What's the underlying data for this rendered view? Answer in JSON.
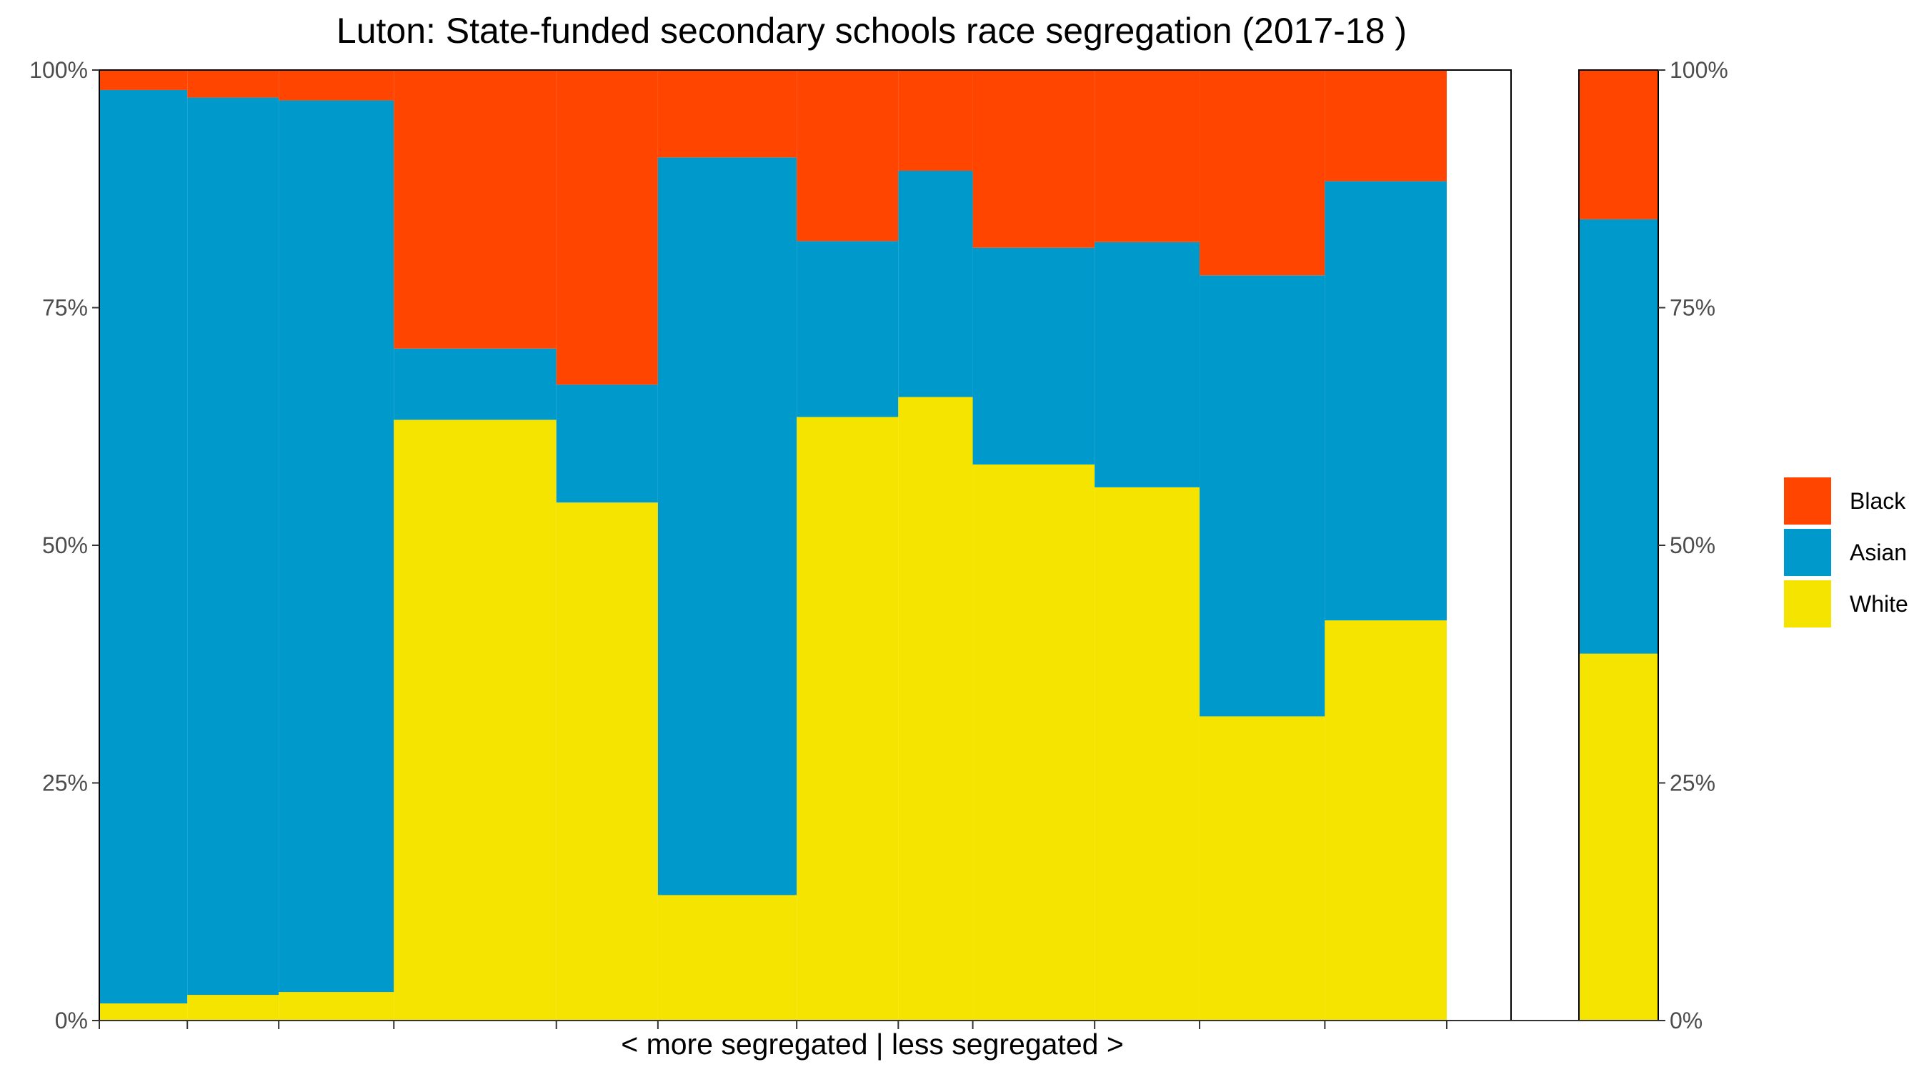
{
  "chart_data": {
    "type": "bar",
    "subtype": "stacked-proportional-variable-width",
    "title": "Luton: State-funded secondary schools race segregation (2017-18 )",
    "xlabel": "< more segregated | less segregated >",
    "ylabel": "",
    "ylim": [
      0,
      1
    ],
    "y_ticks": [
      "0%",
      "25%",
      "50%",
      "75%",
      "100%"
    ],
    "y_axis_both_sides": true,
    "grid": false,
    "legend_position": "right",
    "series_order_bottom_to_top": [
      "White",
      "Asian",
      "Black"
    ],
    "legend": [
      "Black",
      "Asian",
      "White"
    ],
    "colors": {
      "Black": "#ff4500",
      "Asian": "#0099cc",
      "White": "#f5e300",
      "border": "#000000"
    },
    "total_x_range": [
      0,
      20.85
    ],
    "schools": [
      {
        "x0": 0.0,
        "x1": 1.3,
        "white": 0.018,
        "asian": 0.961,
        "black": 0.021
      },
      {
        "x0": 1.3,
        "x1": 2.65,
        "white": 0.027,
        "asian": 0.944,
        "black": 0.029
      },
      {
        "x0": 2.65,
        "x1": 4.35,
        "white": 0.03,
        "asian": 0.938,
        "black": 0.032
      },
      {
        "x0": 4.35,
        "x1": 6.75,
        "white": 0.632,
        "asian": 0.075,
        "black": 0.293
      },
      {
        "x0": 6.75,
        "x1": 8.25,
        "white": 0.545,
        "asian": 0.124,
        "black": 0.331
      },
      {
        "x0": 8.25,
        "x1": 10.3,
        "white": 0.132,
        "asian": 0.776,
        "black": 0.092
      },
      {
        "x0": 10.3,
        "x1": 11.8,
        "white": 0.635,
        "asian": 0.185,
        "black": 0.18
      },
      {
        "x0": 11.8,
        "x1": 12.9,
        "white": 0.656,
        "asian": 0.238,
        "black": 0.106
      },
      {
        "x0": 12.9,
        "x1": 14.7,
        "white": 0.585,
        "asian": 0.228,
        "black": 0.187
      },
      {
        "x0": 14.7,
        "x1": 16.25,
        "white": 0.561,
        "asian": 0.258,
        "black": 0.181
      },
      {
        "x0": 16.25,
        "x1": 18.1,
        "white": 0.32,
        "asian": 0.464,
        "black": 0.216
      },
      {
        "x0": 18.1,
        "x1": 19.9,
        "white": 0.421,
        "asian": 0.462,
        "black": 0.117
      }
    ],
    "summary_bar": {
      "white": 0.386,
      "asian": 0.457,
      "black": 0.157
    }
  }
}
